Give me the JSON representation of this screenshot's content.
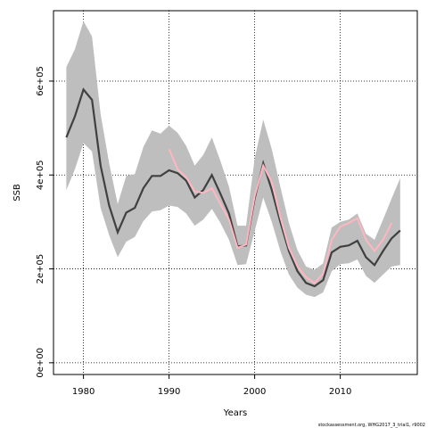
{
  "chart_data": {
    "type": "line",
    "xlabel": "Years",
    "ylabel": "SSB",
    "xlim": [
      1976.5,
      2019.0
    ],
    "ylim": [
      -25000,
      750000
    ],
    "xticks": [
      1980,
      1990,
      2000,
      2010
    ],
    "xtick_labels": [
      "1980",
      "1990",
      "2000",
      "2010"
    ],
    "yticks": [
      0,
      200000,
      400000,
      600000
    ],
    "ytick_labels": [
      "0e+00",
      "2e+05",
      "4e+05",
      "6e+05"
    ],
    "grid": "dotted",
    "footer": "stockassessment.org, WHG2017_3_trial1, r9002",
    "series": [
      {
        "role": "estimate",
        "color": "#404040",
        "x": [
          1978,
          1979,
          1980,
          1981,
          1982,
          1983,
          1984,
          1985,
          1986,
          1987,
          1988,
          1989,
          1990,
          1991,
          1992,
          1993,
          1994,
          1995,
          1996,
          1997,
          1998,
          1999,
          2000,
          2001,
          2002,
          2003,
          2004,
          2005,
          2006,
          2007,
          2008,
          2009,
          2010,
          2011,
          2012,
          2013,
          2014,
          2015,
          2016,
          2017
        ],
        "values": [
          480000,
          525000,
          582000,
          560000,
          420000,
          335000,
          278000,
          320000,
          330000,
          372000,
          398000,
          398000,
          410000,
          404000,
          388000,
          352000,
          368000,
          400000,
          360000,
          318000,
          248000,
          250000,
          350000,
          425000,
          368000,
          300000,
          238000,
          195000,
          170000,
          163000,
          176000,
          235000,
          247000,
          250000,
          260000,
          225000,
          208000,
          238000,
          265000,
          282000
        ]
      },
      {
        "role": "retro",
        "color": "#ffb6c1",
        "x": [
          1990,
          1991,
          1992,
          1993,
          1994,
          1995,
          1996,
          1997,
          1998,
          1999,
          2000,
          2001,
          2002,
          2003,
          2004,
          2005,
          2006,
          2007,
          2008,
          2009,
          2010,
          2011,
          2012,
          2013,
          2014,
          2015,
          2016
        ],
        "values": [
          455000,
          412000,
          395000,
          365000,
          362000,
          372000,
          338000,
          305000,
          245000,
          252000,
          355000,
          420000,
          385000,
          310000,
          245000,
          205000,
          182000,
          170000,
          190000,
          262000,
          290000,
          298000,
          308000,
          262000,
          238000,
          262000,
          298000
        ]
      }
    ],
    "confidence_band": {
      "color": "#bebebe",
      "x": [
        1978,
        1979,
        1980,
        1981,
        1982,
        1983,
        1984,
        1985,
        1986,
        1987,
        1988,
        1989,
        1990,
        1991,
        1992,
        1993,
        1994,
        1995,
        1996,
        1997,
        1998,
        1999,
        2000,
        2001,
        2002,
        2003,
        2004,
        2005,
        2006,
        2007,
        2008,
        2009,
        2010,
        2011,
        2012,
        2013,
        2014,
        2015,
        2016,
        2017
      ],
      "upper": [
        630000,
        668000,
        728000,
        695000,
        530000,
        425000,
        338000,
        398000,
        402000,
        460000,
        495000,
        488000,
        505000,
        490000,
        462000,
        420000,
        443000,
        480000,
        430000,
        375000,
        292000,
        292000,
        435000,
        518000,
        455000,
        375000,
        298000,
        240000,
        205000,
        198000,
        212000,
        288000,
        300000,
        305000,
        318000,
        275000,
        262000,
        305000,
        350000,
        393000
      ],
      "lower": [
        368000,
        412000,
        468000,
        450000,
        330000,
        272000,
        225000,
        258000,
        268000,
        302000,
        322000,
        325000,
        335000,
        332000,
        318000,
        292000,
        305000,
        328000,
        298000,
        262000,
        208000,
        210000,
        280000,
        352000,
        300000,
        238000,
        188000,
        160000,
        145000,
        140000,
        150000,
        195000,
        210000,
        212000,
        220000,
        185000,
        170000,
        188000,
        205000,
        208000
      ]
    }
  }
}
